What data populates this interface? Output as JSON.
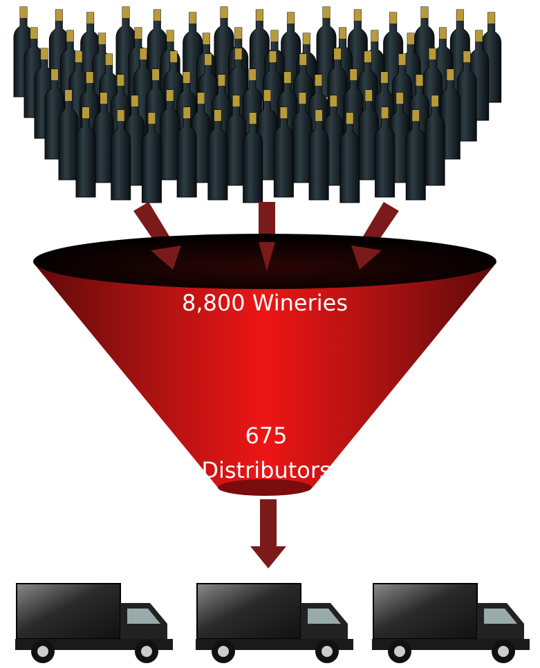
{
  "funnel": {
    "top_label": "8,800 Wineries",
    "bottom_label": {
      "count": "675",
      "name": "Distributors"
    }
  }
}
